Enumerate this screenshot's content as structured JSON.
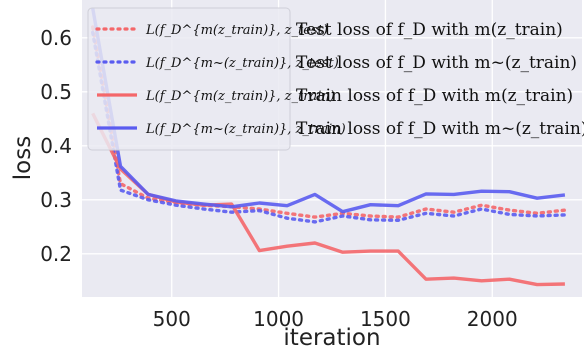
{
  "chart_data": {
    "type": "line",
    "title": "",
    "xlabel": "iteration",
    "ylabel": "loss",
    "xlim": [
      80,
      2420
    ],
    "ylim": [
      0.12,
      0.67
    ],
    "x_ticks": [
      500,
      1000,
      1500,
      2000
    ],
    "y_ticks": [
      0.2,
      0.3,
      0.4,
      0.5,
      0.6
    ],
    "grid": true,
    "legend_position": "top",
    "x": [
      130,
      260,
      390,
      520,
      650,
      780,
      910,
      1040,
      1170,
      1300,
      1430,
      1560,
      1690,
      1820,
      1950,
      2080,
      2210,
      2340
    ],
    "series": [
      {
        "label": "L(f_D^{m(z_train)}, z_test)",
        "description": "Test loss of f_D with m(z_train)",
        "color": "#f4676a",
        "style": "dotted",
        "values": [
          0.62,
          0.33,
          0.303,
          0.295,
          0.29,
          0.287,
          0.283,
          0.275,
          0.268,
          0.275,
          0.27,
          0.268,
          0.283,
          0.277,
          0.29,
          0.281,
          0.275,
          0.281
        ]
      },
      {
        "label": "L(f_D^{m~(z_train)}, z_test)",
        "description": "Test loss of f_D with m~(z_train)",
        "color": "#5a5cf0",
        "style": "dotted",
        "values": [
          0.61,
          0.318,
          0.3,
          0.29,
          0.283,
          0.277,
          0.28,
          0.266,
          0.259,
          0.27,
          0.263,
          0.262,
          0.275,
          0.27,
          0.283,
          0.273,
          0.27,
          0.272
        ]
      },
      {
        "label": "L(f_D^{m(z_train)}, z_train)",
        "description": "Train loss of f_D with m(z_train)",
        "color": "#f4676a",
        "style": "solid",
        "values": [
          0.46,
          0.357,
          0.31,
          0.296,
          0.29,
          0.292,
          0.206,
          0.214,
          0.22,
          0.203,
          0.205,
          0.205,
          0.153,
          0.155,
          0.15,
          0.153,
          0.143,
          0.144
        ]
      },
      {
        "label": "L(f_D^{m~(z_train)}, z_train)",
        "description": "Train loss of f_D with m~(z_train)",
        "color": "#5a5cf0",
        "style": "solid",
        "values": [
          0.655,
          0.362,
          0.31,
          0.298,
          0.292,
          0.287,
          0.294,
          0.289,
          0.31,
          0.278,
          0.291,
          0.289,
          0.311,
          0.31,
          0.316,
          0.315,
          0.303,
          0.309
        ]
      }
    ]
  }
}
